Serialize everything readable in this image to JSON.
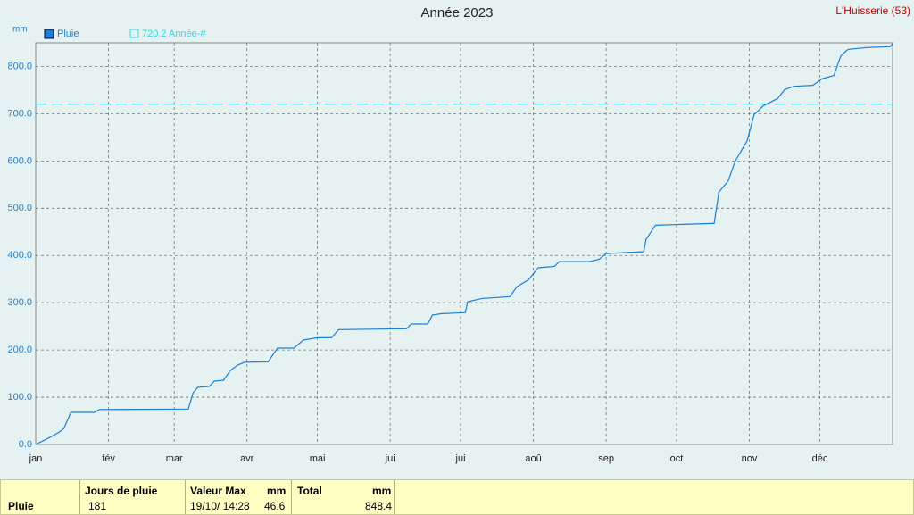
{
  "chart_data": {
    "type": "line",
    "title": "Année 2023",
    "corner_label": "L'Huisserie (53)",
    "y_unit": "mm",
    "xlim": [
      0,
      365
    ],
    "xticks": [
      {
        "value": 0,
        "label": "jan"
      },
      {
        "value": 31,
        "label": "fév"
      },
      {
        "value": 59,
        "label": "mar"
      },
      {
        "value": 90,
        "label": "avr"
      },
      {
        "value": 120,
        "label": "mai"
      },
      {
        "value": 151,
        "label": "jui"
      },
      {
        "value": 181,
        "label": "jui"
      },
      {
        "value": 212,
        "label": "aoû"
      },
      {
        "value": 243,
        "label": "sep"
      },
      {
        "value": 273,
        "label": "oct"
      },
      {
        "value": 304,
        "label": "nov"
      },
      {
        "value": 334,
        "label": "déc"
      }
    ],
    "ylim": [
      0,
      850
    ],
    "yticks": [
      {
        "value": 0,
        "label": "0.0"
      },
      {
        "value": 100,
        "label": "100.0"
      },
      {
        "value": 200,
        "label": "200.0"
      },
      {
        "value": 300,
        "label": "300.0"
      },
      {
        "value": 400,
        "label": "400.0"
      },
      {
        "value": 500,
        "label": "500.0"
      },
      {
        "value": 600,
        "label": "600.0"
      },
      {
        "value": 700,
        "label": "700.0"
      },
      {
        "value": 800,
        "label": "800.0"
      }
    ],
    "grid": true,
    "series": [
      {
        "name": "Pluie",
        "color": "#1c7ed6",
        "x": [
          0,
          6,
          10,
          12,
          15,
          25,
          27,
          65,
          67,
          69,
          74,
          76,
          80,
          83,
          86,
          89,
          99,
          103,
          110,
          114,
          120,
          126,
          129,
          158,
          160,
          167,
          169,
          173,
          183,
          184,
          190,
          202,
          205,
          210,
          214,
          221,
          223,
          236,
          240,
          243,
          259,
          260,
          264,
          289,
          291,
          295,
          298,
          303,
          306,
          310,
          316,
          319,
          323,
          331,
          335,
          340,
          343,
          346,
          354,
          364,
          365
        ],
        "values": [
          0,
          15,
          26,
          34,
          68,
          68,
          74,
          75,
          109,
          121,
          123,
          134,
          136,
          157,
          168,
          174,
          175,
          204,
          204,
          221,
          226,
          226,
          243,
          245,
          255,
          255,
          274,
          277,
          279,
          302,
          309,
          313,
          334,
          349,
          374,
          377,
          387,
          387,
          392,
          404,
          408,
          434,
          464,
          468,
          534,
          558,
          600,
          642,
          698,
          717,
          732,
          751,
          758,
          760,
          774,
          781,
          823,
          836,
          840,
          842,
          848.4
        ]
      }
    ],
    "reference": {
      "value": 720.2,
      "label": "720.2 Année-#",
      "color": "#33d6e8"
    }
  },
  "table": {
    "header": [
      "Jours de pluie",
      "Valeur Max",
      "mm",
      "Total",
      "mm"
    ],
    "rows": [
      [
        "Pluie",
        "181",
        "19/10/ 14:28",
        "46.6",
        "848.4"
      ]
    ]
  }
}
